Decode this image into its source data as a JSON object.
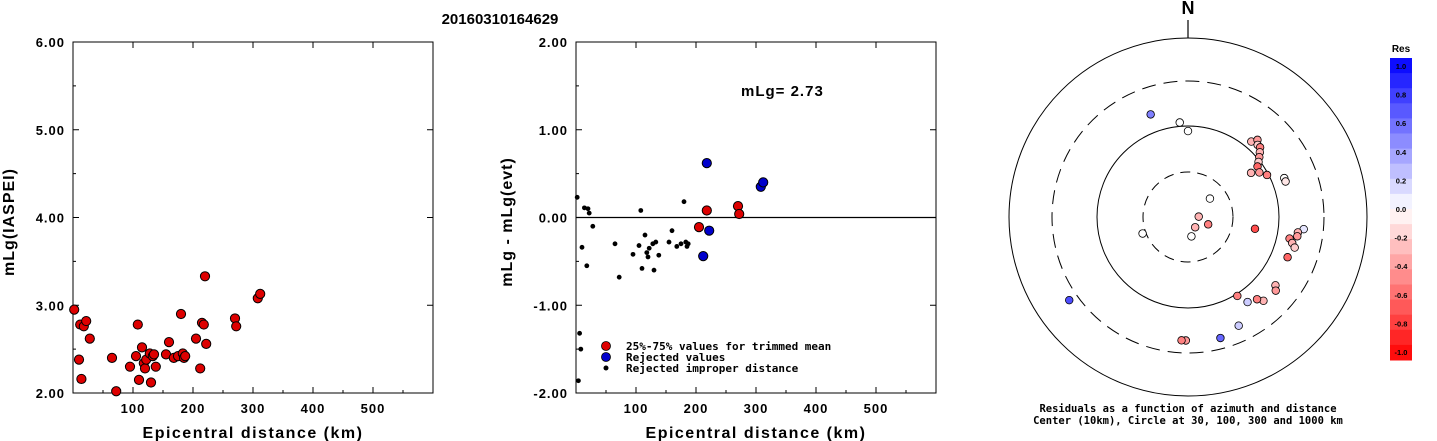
{
  "title": "20160310164629",
  "chart_data": [
    {
      "type": "scatter",
      "xlabel": "Epicentral distance (km)",
      "ylabel": "mLg(IASPEI)",
      "xlim": [
        0,
        600
      ],
      "ylim": [
        2.0,
        6.0
      ],
      "x_ticks": [
        "100",
        "200",
        "300",
        "400",
        "500"
      ],
      "y_ticks": [
        "2.00",
        "3.00",
        "4.00",
        "5.00",
        "6.00"
      ],
      "marker_color": "#dd0000",
      "points": [
        [
          2,
          2.95
        ],
        [
          10,
          2.38
        ],
        [
          12,
          2.78
        ],
        [
          14,
          2.16
        ],
        [
          18,
          2.76
        ],
        [
          22,
          2.82
        ],
        [
          28,
          2.62
        ],
        [
          65,
          2.4
        ],
        [
          72,
          2.02
        ],
        [
          95,
          2.3
        ],
        [
          105,
          2.42
        ],
        [
          108,
          2.78
        ],
        [
          110,
          2.15
        ],
        [
          115,
          2.52
        ],
        [
          118,
          2.34
        ],
        [
          120,
          2.28
        ],
        [
          122,
          2.38
        ],
        [
          128,
          2.45
        ],
        [
          130,
          2.12
        ],
        [
          133,
          2.42
        ],
        [
          135,
          2.44
        ],
        [
          138,
          2.3
        ],
        [
          155,
          2.44
        ],
        [
          160,
          2.58
        ],
        [
          168,
          2.4
        ],
        [
          175,
          2.42
        ],
        [
          180,
          2.9
        ],
        [
          183,
          2.45
        ],
        [
          185,
          2.4
        ],
        [
          187,
          2.42
        ],
        [
          205,
          2.62
        ],
        [
          212,
          2.28
        ],
        [
          215,
          2.8
        ],
        [
          218,
          2.78
        ],
        [
          220,
          3.33
        ],
        [
          222,
          2.56
        ],
        [
          270,
          2.85
        ],
        [
          272,
          2.76
        ],
        [
          308,
          3.08
        ],
        [
          312,
          3.13
        ]
      ]
    },
    {
      "type": "scatter",
      "xlabel": "Epicentral distance (km)",
      "ylabel": "mLg - mLg(evt)",
      "xlim": [
        0,
        600
      ],
      "ylim": [
        -2.0,
        2.0
      ],
      "x_ticks": [
        "100",
        "200",
        "300",
        "400",
        "500"
      ],
      "y_ticks": [
        "-2.00",
        "-1.00",
        "0.00",
        "1.00",
        "2.00"
      ],
      "annotation": "mLg= 2.73",
      "reference_line_y": 0.0,
      "legend": [
        {
          "label": "25%-75% values for trimmed mean",
          "color": "#dd0000"
        },
        {
          "label": "Rejected values",
          "color": "#0000cc"
        },
        {
          "label": "Rejected improper distance",
          "color": "#000000"
        }
      ],
      "series": [
        {
          "name": "25%-75% values for trimmed mean",
          "points": [
            [
              205,
              -0.11
            ],
            [
              218,
              0.08
            ],
            [
              270,
              0.13
            ],
            [
              272,
              0.04
            ]
          ]
        },
        {
          "name": "Rejected values",
          "points": [
            [
              212,
              -0.44
            ],
            [
              218,
              0.62
            ],
            [
              222,
              -0.15
            ],
            [
              308,
              0.35
            ],
            [
              312,
              0.4
            ]
          ]
        },
        {
          "name": "Rejected improper distance",
          "points": [
            [
              2,
              0.23
            ],
            [
              4,
              -1.86
            ],
            [
              6,
              -1.32
            ],
            [
              8,
              -1.5
            ],
            [
              10,
              -0.34
            ],
            [
              14,
              0.11
            ],
            [
              18,
              -0.55
            ],
            [
              20,
              0.1
            ],
            [
              22,
              0.05
            ],
            [
              28,
              -0.1
            ],
            [
              65,
              -0.3
            ],
            [
              72,
              -0.68
            ],
            [
              95,
              -0.42
            ],
            [
              105,
              -0.32
            ],
            [
              108,
              0.08
            ],
            [
              110,
              -0.58
            ],
            [
              115,
              -0.2
            ],
            [
              118,
              -0.4
            ],
            [
              120,
              -0.45
            ],
            [
              122,
              -0.35
            ],
            [
              128,
              -0.3
            ],
            [
              130,
              -0.6
            ],
            [
              133,
              -0.28
            ],
            [
              138,
              -0.43
            ],
            [
              155,
              -0.28
            ],
            [
              160,
              -0.15
            ],
            [
              168,
              -0.33
            ],
            [
              175,
              -0.3
            ],
            [
              180,
              0.18
            ],
            [
              183,
              -0.28
            ],
            [
              185,
              -0.33
            ],
            [
              187,
              -0.3
            ]
          ]
        }
      ]
    },
    {
      "type": "polar_scatter",
      "north_label": "N",
      "caption_line1": "Residuals as a function of azimuth and distance",
      "caption_line2": "Center (10km), Circle at 30, 100, 300 and 1000 km",
      "rings_km": [
        30,
        100,
        300,
        1000
      ],
      "colorbar_title": "Res",
      "colorbar_ticks": [
        "1.0",
        "0.8",
        "0.6",
        "0.4",
        "0.2",
        "0.0",
        "-0.2",
        "-0.4",
        "-0.6",
        "-0.8",
        "-1.0"
      ],
      "points": [
        {
          "az": 50,
          "d": 0.16,
          "res": 0.0
        },
        {
          "az": 88,
          "d": 0.06,
          "res": -0.3
        },
        {
          "az": 145,
          "d": 0.07,
          "res": -0.3
        },
        {
          "az": 110,
          "d": 0.12,
          "res": -0.5
        },
        {
          "az": 250,
          "d": 0.27,
          "res": 0.0
        },
        {
          "az": 170,
          "d": 0.11,
          "res": 0.0
        },
        {
          "az": 100,
          "d": 0.38,
          "res": -0.7
        },
        {
          "az": 0,
          "d": 0.48,
          "res": 0.0
        },
        {
          "az": 355,
          "d": 0.53,
          "res": 0.0
        },
        {
          "az": 340,
          "d": 0.61,
          "res": 0.5
        },
        {
          "az": 40,
          "d": 0.55,
          "res": -0.3
        },
        {
          "az": 42,
          "d": 0.58,
          "res": -0.4
        },
        {
          "az": 44,
          "d": 0.56,
          "res": -0.2
        },
        {
          "az": 46,
          "d": 0.56,
          "res": -0.5
        },
        {
          "az": 48,
          "d": 0.54,
          "res": -0.3
        },
        {
          "az": 50,
          "d": 0.52,
          "res": -0.4
        },
        {
          "az": 52,
          "d": 0.5,
          "res": -0.2
        },
        {
          "az": 54,
          "d": 0.48,
          "res": -0.6
        },
        {
          "az": 58,
          "d": 0.47,
          "res": -0.4
        },
        {
          "az": 55,
          "d": 0.43,
          "res": -0.3
        },
        {
          "az": 62,
          "d": 0.5,
          "res": -0.5
        },
        {
          "az": 68,
          "d": 0.58,
          "res": 0.0
        },
        {
          "az": 70,
          "d": 0.58,
          "res": -0.1
        },
        {
          "az": 96,
          "d": 0.65,
          "res": 0.1
        },
        {
          "az": 98,
          "d": 0.62,
          "res": -0.3
        },
        {
          "az": 100,
          "d": 0.62,
          "res": -0.4
        },
        {
          "az": 102,
          "d": 0.58,
          "res": -0.5
        },
        {
          "az": 104,
          "d": 0.6,
          "res": -0.3
        },
        {
          "az": 106,
          "d": 0.62,
          "res": -0.2
        },
        {
          "az": 112,
          "d": 0.6,
          "res": -0.6
        },
        {
          "az": 128,
          "d": 0.62,
          "res": -0.3
        },
        {
          "az": 130,
          "d": 0.64,
          "res": -0.4
        },
        {
          "az": 138,
          "d": 0.63,
          "res": -0.3
        },
        {
          "az": 140,
          "d": 0.6,
          "res": -0.5
        },
        {
          "az": 145,
          "d": 0.58,
          "res": 0.2
        },
        {
          "az": 148,
          "d": 0.52,
          "res": -0.5
        },
        {
          "az": 155,
          "d": 0.67,
          "res": 0.2
        },
        {
          "az": 165,
          "d": 0.7,
          "res": 0.6
        },
        {
          "az": 181,
          "d": 0.69,
          "res": -0.4
        },
        {
          "az": 183,
          "d": 0.69,
          "res": -0.5
        },
        {
          "az": 235,
          "d": 0.81,
          "res": 0.7
        }
      ]
    }
  ]
}
